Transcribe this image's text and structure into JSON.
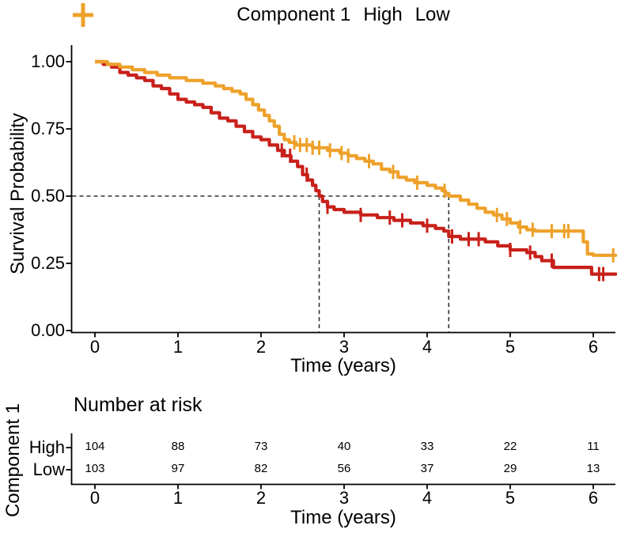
{
  "colors": {
    "high": "#C8201A",
    "low": "#EEA12A",
    "dashes": "#333333",
    "axis": "#000000",
    "text": "#000000",
    "background": "#FFFFFF"
  },
  "legend": {
    "title": "Component 1",
    "items": [
      {
        "label": "High",
        "color": "#C8201A"
      },
      {
        "label": "Low",
        "color": "#EEA12A"
      }
    ]
  },
  "main_plot": {
    "ylabel": "Survival Probability",
    "xlabel": "Time (years)",
    "yticks": [
      "1.00",
      "0.75",
      "0.50",
      "0.25",
      "0.00"
    ],
    "xticks": [
      "0",
      "1",
      "2",
      "3",
      "4",
      "5",
      "6"
    ]
  },
  "chart_data": {
    "type": "line",
    "subtype": "kaplan_meier_step_curves",
    "title": "",
    "xlabel": "Time (years)",
    "ylabel": "Survival Probability",
    "xlim": [
      0,
      6.27
    ],
    "ylim": [
      0,
      1
    ],
    "grid": false,
    "legend_position": "top",
    "median_reference": {
      "survival_probability": 0.5,
      "median_times_years": {
        "High": 2.7,
        "Low": 4.26
      }
    },
    "series": [
      {
        "name": "High",
        "color": "#C8201A",
        "steps": [
          [
            0,
            1.0
          ],
          [
            0.1,
            0.99
          ],
          [
            0.2,
            0.98
          ],
          [
            0.3,
            0.96
          ],
          [
            0.4,
            0.95
          ],
          [
            0.5,
            0.94
          ],
          [
            0.6,
            0.93
          ],
          [
            0.7,
            0.91
          ],
          [
            0.8,
            0.9
          ],
          [
            0.9,
            0.88
          ],
          [
            1.0,
            0.86
          ],
          [
            1.1,
            0.85
          ],
          [
            1.2,
            0.84
          ],
          [
            1.3,
            0.83
          ],
          [
            1.4,
            0.81
          ],
          [
            1.5,
            0.79
          ],
          [
            1.6,
            0.78
          ],
          [
            1.7,
            0.76
          ],
          [
            1.8,
            0.74
          ],
          [
            1.9,
            0.72
          ],
          [
            2.0,
            0.71
          ],
          [
            2.1,
            0.69
          ],
          [
            2.2,
            0.67
          ],
          [
            2.28,
            0.65
          ],
          [
            2.36,
            0.63
          ],
          [
            2.44,
            0.61
          ],
          [
            2.5,
            0.58
          ],
          [
            2.56,
            0.56
          ],
          [
            2.62,
            0.54
          ],
          [
            2.66,
            0.52
          ],
          [
            2.7,
            0.5
          ],
          [
            2.74,
            0.48
          ],
          [
            2.8,
            0.46
          ],
          [
            2.88,
            0.45
          ],
          [
            3.0,
            0.44
          ],
          [
            3.2,
            0.43
          ],
          [
            3.4,
            0.42
          ],
          [
            3.6,
            0.41
          ],
          [
            3.8,
            0.4
          ],
          [
            3.95,
            0.39
          ],
          [
            4.1,
            0.38
          ],
          [
            4.2,
            0.37
          ],
          [
            4.26,
            0.35
          ],
          [
            4.4,
            0.34
          ],
          [
            4.7,
            0.33
          ],
          [
            4.85,
            0.315
          ],
          [
            5.0,
            0.3
          ],
          [
            5.2,
            0.29
          ],
          [
            5.3,
            0.275
          ],
          [
            5.38,
            0.26
          ],
          [
            5.52,
            0.235
          ],
          [
            5.98,
            0.21
          ],
          [
            6.27,
            0.21
          ]
        ],
        "censor_times": [
          2.25,
          2.35,
          2.55,
          2.8,
          3.2,
          3.55,
          3.7,
          4.0,
          4.3,
          4.5,
          4.62,
          5.0,
          5.24,
          5.5,
          6.07,
          6.12
        ]
      },
      {
        "name": "Low",
        "color": "#EEA12A",
        "steps": [
          [
            0,
            1.0
          ],
          [
            0.15,
            0.99
          ],
          [
            0.3,
            0.98
          ],
          [
            0.45,
            0.97
          ],
          [
            0.6,
            0.96
          ],
          [
            0.75,
            0.95
          ],
          [
            0.9,
            0.94
          ],
          [
            1.1,
            0.93
          ],
          [
            1.3,
            0.92
          ],
          [
            1.45,
            0.91
          ],
          [
            1.55,
            0.9
          ],
          [
            1.65,
            0.89
          ],
          [
            1.75,
            0.88
          ],
          [
            1.82,
            0.86
          ],
          [
            1.9,
            0.84
          ],
          [
            1.97,
            0.82
          ],
          [
            2.04,
            0.8
          ],
          [
            2.1,
            0.78
          ],
          [
            2.16,
            0.76
          ],
          [
            2.22,
            0.73
          ],
          [
            2.28,
            0.71
          ],
          [
            2.34,
            0.7
          ],
          [
            2.42,
            0.69
          ],
          [
            2.62,
            0.68
          ],
          [
            2.8,
            0.67
          ],
          [
            2.95,
            0.66
          ],
          [
            3.05,
            0.65
          ],
          [
            3.15,
            0.64
          ],
          [
            3.25,
            0.63
          ],
          [
            3.35,
            0.62
          ],
          [
            3.45,
            0.6
          ],
          [
            3.55,
            0.59
          ],
          [
            3.65,
            0.57
          ],
          [
            3.75,
            0.56
          ],
          [
            3.85,
            0.55
          ],
          [
            4.0,
            0.54
          ],
          [
            4.1,
            0.53
          ],
          [
            4.18,
            0.52
          ],
          [
            4.22,
            0.51
          ],
          [
            4.26,
            0.5
          ],
          [
            4.4,
            0.485
          ],
          [
            4.5,
            0.47
          ],
          [
            4.6,
            0.455
          ],
          [
            4.7,
            0.44
          ],
          [
            4.8,
            0.43
          ],
          [
            4.9,
            0.415
          ],
          [
            5.0,
            0.4
          ],
          [
            5.1,
            0.385
          ],
          [
            5.2,
            0.375
          ],
          [
            5.3,
            0.37
          ],
          [
            5.88,
            0.33
          ],
          [
            5.93,
            0.285
          ],
          [
            6.0,
            0.28
          ],
          [
            6.27,
            0.28
          ]
        ],
        "censor_times": [
          2.4,
          2.47,
          2.55,
          2.62,
          2.7,
          2.83,
          2.97,
          3.05,
          3.3,
          3.59,
          3.88,
          4.21,
          4.84,
          4.96,
          5.12,
          5.27,
          5.5,
          5.65,
          5.7,
          6.24
        ]
      }
    ],
    "number_at_risk": {
      "time_points": [
        0,
        1,
        2,
        3,
        4,
        5,
        6
      ],
      "High": [
        104,
        88,
        73,
        40,
        33,
        22,
        11
      ],
      "Low": [
        103,
        97,
        82,
        56,
        37,
        29,
        13
      ]
    }
  },
  "risk_table": {
    "title": "Number at risk",
    "group_label": "Component 1",
    "xlabel": "Time (years)",
    "xticks": [
      "0",
      "1",
      "2",
      "3",
      "4",
      "5",
      "6"
    ],
    "rows": [
      {
        "label": "High",
        "counts": [
          "104",
          "88",
          "73",
          "40",
          "33",
          "22",
          "11"
        ]
      },
      {
        "label": "Low",
        "counts": [
          "103",
          "97",
          "82",
          "56",
          "37",
          "29",
          "13"
        ]
      }
    ]
  }
}
